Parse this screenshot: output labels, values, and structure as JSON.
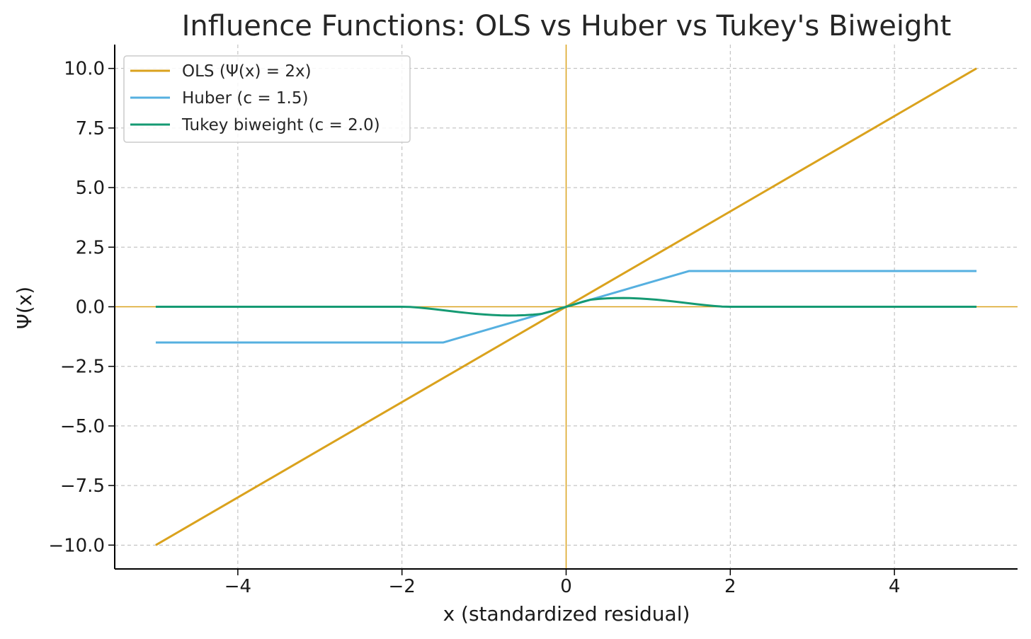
{
  "chart_data": {
    "type": "line",
    "title": "Influence Functions: OLS vs Huber vs Tukey's Biweight",
    "xlabel": "x (standardized residual)",
    "ylabel": "Ψ(x)",
    "xlim": [
      -5.5,
      5.5
    ],
    "ylim": [
      -11,
      11
    ],
    "xticks": [
      -4,
      -2,
      0,
      2,
      4
    ],
    "yticks": [
      10,
      7.5,
      5,
      2.5,
      0,
      -2.5,
      -5,
      -7.5,
      -10
    ],
    "xtick_labels": [
      "−4",
      "−2",
      "0",
      "2",
      "4"
    ],
    "ytick_labels": [
      "10.0",
      "7.5",
      "5.0",
      "2.5",
      "0.0",
      "−2.5",
      "−5.0",
      "−7.5",
      "−10.0"
    ],
    "grid": true,
    "legend_position": "top-left",
    "reference_lines": {
      "x": 0,
      "y": 0,
      "color": "#DAA21D"
    },
    "series": [
      {
        "name": "OLS (Ψ(x) = 2x)",
        "color": "#DAA21D",
        "x": [
          -5,
          5
        ],
        "y": [
          -10,
          10
        ]
      },
      {
        "name": "Huber (c = 1.5)",
        "color": "#56B0E0",
        "x": [
          -5,
          -1.5,
          1.5,
          5
        ],
        "y": [
          -1.5,
          -1.5,
          1.5,
          1.5
        ]
      },
      {
        "name": "Tukey biweight (c = 2.0)",
        "color": "#159A73",
        "x": [
          -5,
          -2,
          -1.9,
          -1.8,
          -1.7,
          -1.6,
          -1.5,
          -1.4,
          -1.3,
          -1.2,
          -1.1,
          -1.0,
          -0.9,
          -0.8,
          -0.7,
          -0.6,
          -0.5,
          -0.4,
          -0.3,
          -0.2,
          -0.1,
          0,
          0.1,
          0.2,
          0.3,
          0.4,
          0.5,
          0.6,
          0.7,
          0.8,
          0.9,
          1.0,
          1.1,
          1.2,
          1.3,
          1.4,
          1.5,
          1.6,
          1.7,
          1.8,
          1.9,
          2,
          5
        ],
        "y": [
          0,
          0,
          -0.009,
          -0.034,
          -0.066,
          -0.104,
          -0.144,
          -0.185,
          -0.225,
          -0.262,
          -0.296,
          -0.324,
          -0.346,
          -0.361,
          -0.367,
          -0.364,
          -0.351,
          -0.329,
          -0.298,
          -0.208,
          -0.099,
          0,
          0.099,
          0.208,
          0.298,
          0.329,
          0.351,
          0.364,
          0.367,
          0.361,
          0.346,
          0.324,
          0.296,
          0.262,
          0.225,
          0.185,
          0.144,
          0.104,
          0.066,
          0.034,
          0.009,
          0,
          0
        ]
      }
    ]
  }
}
